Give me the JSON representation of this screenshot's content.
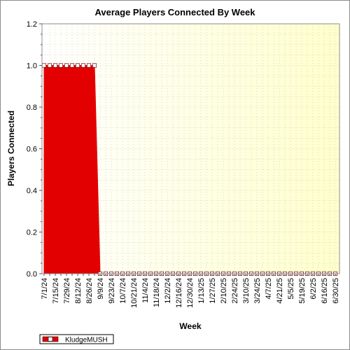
{
  "chart_data": {
    "type": "area",
    "title": "Average Players Connected By Week",
    "xlabel": "Week",
    "ylabel": "Players Connected",
    "ylim": [
      0,
      1.2
    ],
    "yticks": [
      "0.0",
      "0.2",
      "0.4",
      "0.6",
      "0.8",
      "1.0",
      "1.2"
    ],
    "x_tick_labels": [
      "7/1/24",
      "7/15/24",
      "7/29/24",
      "8/12/24",
      "8/26/24",
      "9/9/24",
      "9/23/24",
      "10/7/24",
      "10/21/24",
      "11/4/24",
      "11/18/24",
      "12/2/24",
      "12/16/24",
      "12/30/24",
      "1/13/25",
      "1/27/25",
      "2/10/25",
      "2/24/25",
      "3/10/25",
      "3/24/25",
      "4/7/25",
      "4/21/25",
      "5/5/25",
      "5/19/25",
      "6/2/25",
      "6/16/25",
      "6/30/25"
    ],
    "grid": true,
    "legend_position": "bottom-left",
    "series": [
      {
        "name": "KludgeMUSH",
        "color": "#e30000",
        "x": [
          "7/1/24",
          "7/8/24",
          "7/15/24",
          "7/22/24",
          "7/29/24",
          "8/5/24",
          "8/12/24",
          "8/19/24",
          "8/26/24",
          "9/2/24",
          "9/9/24",
          "9/16/24",
          "9/23/24",
          "9/30/24",
          "10/7/24",
          "10/14/24",
          "10/21/24",
          "10/28/24",
          "11/4/24",
          "11/11/24",
          "11/18/24",
          "11/25/24",
          "12/2/24",
          "12/9/24",
          "12/16/24",
          "12/23/24",
          "12/30/24",
          "1/6/25",
          "1/13/25",
          "1/20/25",
          "1/27/25",
          "2/3/25",
          "2/10/25",
          "2/17/25",
          "2/24/25",
          "3/3/25",
          "3/10/25",
          "3/17/25",
          "3/24/25",
          "3/31/25",
          "4/7/25",
          "4/14/25",
          "4/21/25",
          "4/28/25",
          "5/5/25",
          "5/12/25",
          "5/19/25",
          "5/26/25",
          "6/2/25",
          "6/9/25",
          "6/16/25",
          "6/23/25",
          "6/30/25"
        ],
        "values": [
          1,
          1,
          1,
          1,
          1,
          1,
          1,
          1,
          1,
          1,
          0,
          0,
          0,
          0,
          0,
          0,
          0,
          0,
          0,
          0,
          0,
          0,
          0,
          0,
          0,
          0,
          0,
          0,
          0,
          0,
          0,
          0,
          0,
          0,
          0,
          0,
          0,
          0,
          0,
          0,
          0,
          0,
          0,
          0,
          0,
          0,
          0,
          0,
          0,
          0,
          0,
          0,
          0
        ]
      }
    ]
  }
}
